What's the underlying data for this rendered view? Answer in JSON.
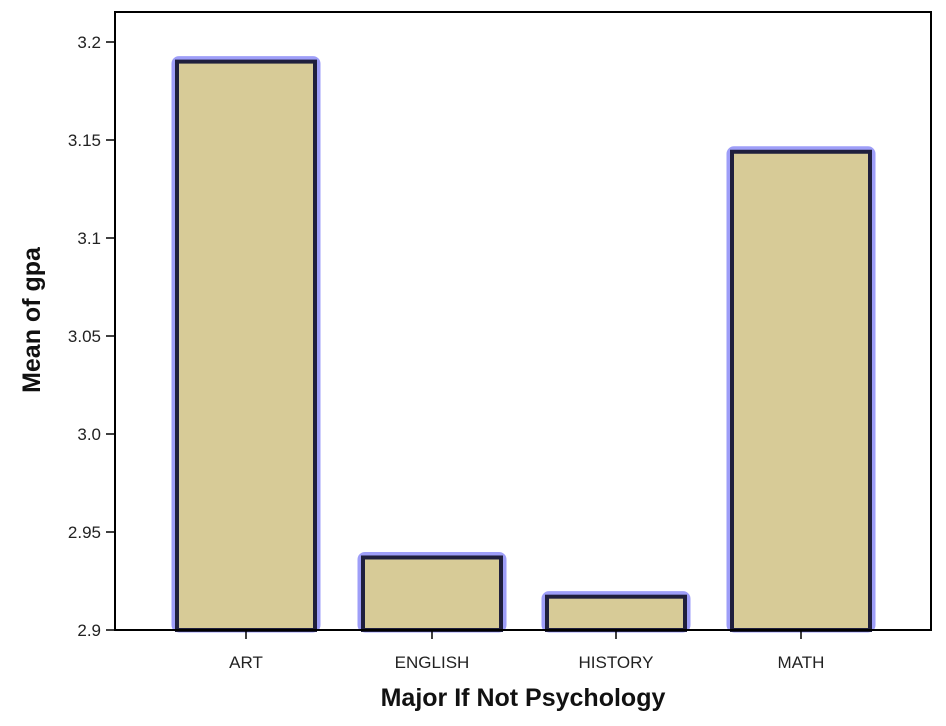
{
  "chart_data": {
    "type": "bar",
    "title": "",
    "xlabel": "Major If Not Psychology",
    "ylabel": "Mean of gpa",
    "categories": [
      "ART",
      "ENGLISH",
      "HISTORY",
      "MATH"
    ],
    "values": [
      3.19,
      2.937,
      2.917,
      3.144
    ],
    "ylim": [
      2.9,
      3.2
    ],
    "yticks": [
      "2.9",
      "2.95",
      "3.0",
      "3.05",
      "3.1",
      "3.15",
      "3.2"
    ],
    "grid": false,
    "legend": "none",
    "colors": {
      "bar_fill": "#d7cb97",
      "bar_stroke": "#1f1f3d",
      "bar_glow": "#7d7df5",
      "axis": "#000000"
    }
  }
}
